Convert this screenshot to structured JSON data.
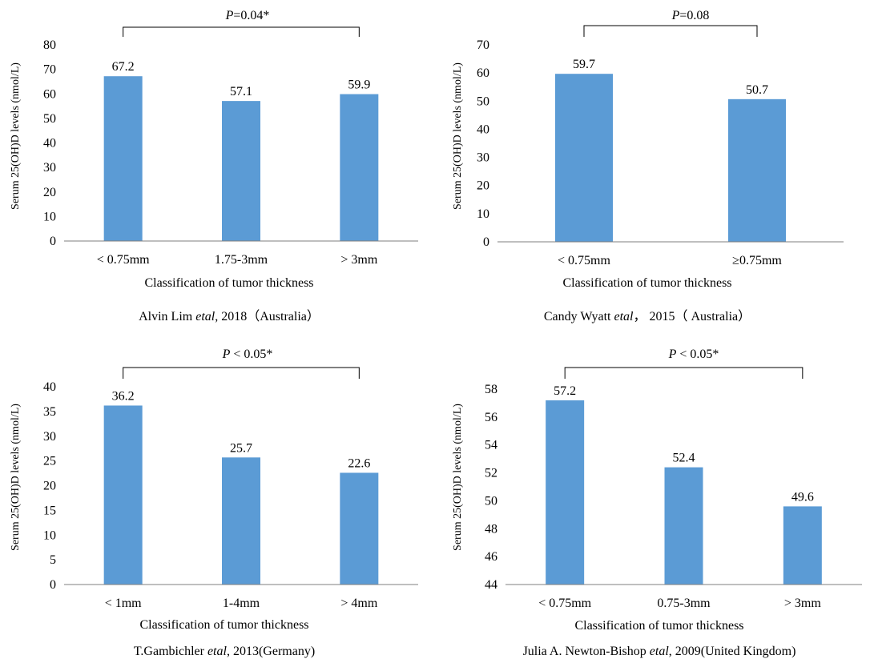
{
  "chart_data": [
    {
      "type": "bar",
      "categories": [
        "< 0.75mm",
        "1.75-3mm",
        "> 3mm"
      ],
      "values": [
        67.2,
        57.1,
        59.9
      ],
      "data_labels": [
        "67.2",
        "57.1",
        "59.9"
      ],
      "ylim": [
        0,
        80
      ],
      "yticks": [
        "0",
        "10",
        "20",
        "30",
        "40",
        "50",
        "60",
        "70",
        "80"
      ],
      "xlabel": "Classification of tumor thickness",
      "ylabel": "Serum 25(OH)D levels (nmol/L)",
      "pvalue": {
        "p": "P",
        "text": "=0.04*"
      },
      "caption": {
        "pre": "Alvin Lim ",
        "etal": "etal",
        "post": ", 2018（Australia）"
      },
      "bar_color": "#5b9bd5",
      "grid": false
    },
    {
      "type": "bar",
      "categories": [
        "< 0.75mm",
        "≥0.75mm"
      ],
      "values": [
        59.7,
        50.7
      ],
      "data_labels": [
        "59.7",
        "50.7"
      ],
      "ylim": [
        0,
        70
      ],
      "yticks": [
        "0",
        "10",
        "20",
        "30",
        "40",
        "50",
        "60",
        "70"
      ],
      "xlabel": "Classification of tumor thickness",
      "ylabel": "Serum 25(OH)D levels (nmol/L)",
      "pvalue": {
        "p": "P",
        "text": "=0.08"
      },
      "caption": {
        "pre": "Candy Wyatt ",
        "etal": "etal",
        "post": "， 2015（ Australia）"
      },
      "bar_color": "#5b9bd5",
      "grid": false
    },
    {
      "type": "bar",
      "categories": [
        "< 1mm",
        "1-4mm",
        "> 4mm"
      ],
      "values": [
        36.2,
        25.7,
        22.6
      ],
      "data_labels": [
        "36.2",
        "25.7",
        "22.6"
      ],
      "ylim": [
        0,
        40
      ],
      "yticks": [
        "0",
        "5",
        "10",
        "15",
        "20",
        "25",
        "30",
        "35",
        "40"
      ],
      "xlabel": "Classification of tumor thickness",
      "ylabel": "Serum 25(OH)D levels (nmol/L)",
      "pvalue": {
        "p": "P",
        "text": " < 0.05*"
      },
      "caption": {
        "pre": "T.Gambichler ",
        "etal": "etal",
        "post": ", 2013(Germany)"
      },
      "bar_color": "#5b9bd5",
      "grid": false
    },
    {
      "type": "bar",
      "categories": [
        "< 0.75mm",
        "0.75-3mm",
        "> 3mm"
      ],
      "values": [
        57.2,
        52.4,
        49.6
      ],
      "data_labels": [
        "57.2",
        "52.4",
        "49.6"
      ],
      "ylim": [
        44,
        58
      ],
      "yticks": [
        "44",
        "46",
        "48",
        "50",
        "52",
        "54",
        "56",
        "58"
      ],
      "xlabel": "Classification of tumor thickness",
      "ylabel": "Serum 25(OH)D levels (nmol/L)",
      "pvalue": {
        "p": "P",
        "text": " < 0.05*"
      },
      "caption": {
        "pre": "Julia A. Newton-Bishop ",
        "etal": "etal",
        "post": ", 2009(United Kingdom)"
      },
      "bar_color": "#5b9bd5",
      "grid": false
    }
  ]
}
